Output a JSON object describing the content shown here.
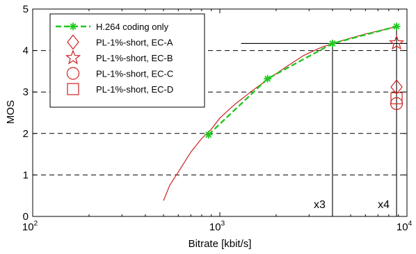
{
  "chart_data": {
    "type": "line",
    "xlabel": "Bitrate [kbit/s]",
    "ylabel": "MOS",
    "x_scale": "log",
    "xlim": [
      100,
      10000
    ],
    "ylim": [
      0,
      5
    ],
    "x_ticks": [
      {
        "base": "10",
        "exp": "2",
        "value": 100
      },
      {
        "base": "10",
        "exp": "3",
        "value": 1000
      },
      {
        "base": "10",
        "exp": "4",
        "value": 10000
      }
    ],
    "y_ticks": [
      "0",
      "1",
      "2",
      "3",
      "4",
      "5"
    ],
    "grid": "dashed horizontal lines at y = 1, 2, 3, 4",
    "legend_position": "top-left",
    "series": [
      {
        "name": "H.264 coding only",
        "style": "dashed-line-asterisk",
        "color": "#1ec81e",
        "x": [
          870,
          1800,
          4000,
          8800
        ],
        "y": [
          1.97,
          3.32,
          4.17,
          4.58
        ]
      },
      {
        "name": "PL-1%-short, EC-A",
        "style": "diamond",
        "color": "#cc2222",
        "x": [
          8800
        ],
        "y": [
          3.12
        ]
      },
      {
        "name": "PL-1%-short, EC-B",
        "style": "star",
        "color": "#cc2222",
        "x": [
          8800
        ],
        "y": [
          4.18
        ]
      },
      {
        "name": "PL-1%-short, EC-C",
        "style": "circle",
        "color": "#cc2222",
        "x": [
          8800
        ],
        "y": [
          2.72
        ]
      },
      {
        "name": "PL-1%-short, EC-D",
        "style": "square",
        "color": "#cc2222",
        "x": [
          8800
        ],
        "y": [
          2.85
        ]
      }
    ],
    "fit_curve": {
      "color": "#cc2222",
      "x": [
        500,
        540,
        600,
        700,
        800,
        900,
        1000,
        1200,
        1500,
        1800,
        2200,
        2800,
        3500,
        4200,
        5000,
        6000,
        7000,
        8000,
        8800
      ],
      "y": [
        0.38,
        0.75,
        1.07,
        1.55,
        1.88,
        2.1,
        2.37,
        2.7,
        3.04,
        3.3,
        3.57,
        3.88,
        4.08,
        4.2,
        4.3,
        4.4,
        4.47,
        4.53,
        4.58
      ]
    },
    "annotations": [
      {
        "label": "x3",
        "x": 4000,
        "y": 4.17,
        "hline_from_x": 1300
      },
      {
        "label": "x4",
        "x": 8800,
        "y": 4.58
      }
    ]
  }
}
